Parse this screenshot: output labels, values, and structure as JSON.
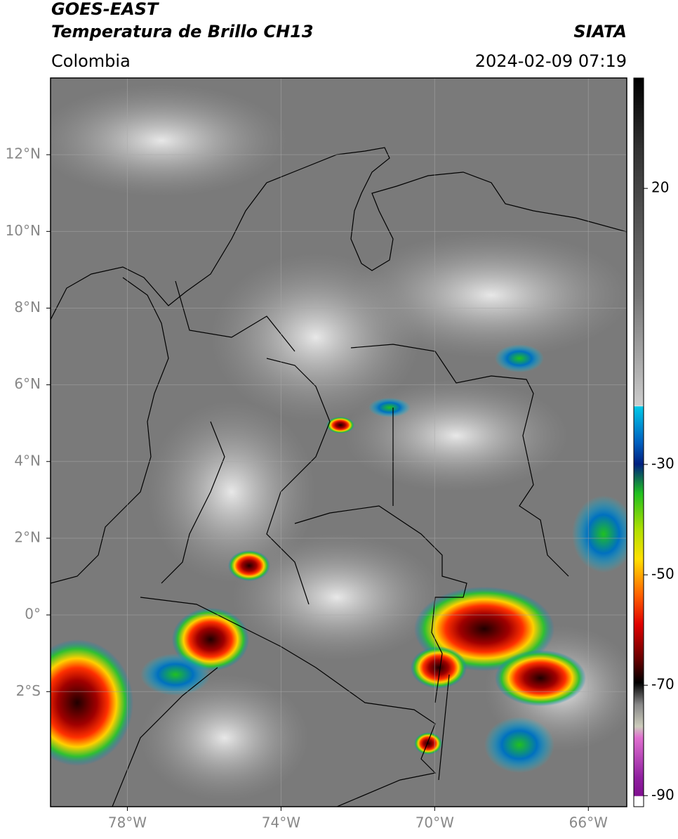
{
  "header": {
    "title": "GOES-EAST",
    "subtitle": "Temperatura de Brillo CH13",
    "source": "SIATA",
    "region": "Colombia",
    "datetime": "2024-02-09 07:19"
  },
  "map": {
    "xlim": [
      -80,
      -65
    ],
    "ylim": [
      -5,
      14
    ],
    "xticks": [
      {
        "value": -78,
        "label": "78°W"
      },
      {
        "value": -74,
        "label": "74°W"
      },
      {
        "value": -70,
        "label": "70°W"
      },
      {
        "value": -66,
        "label": "66°W"
      }
    ],
    "yticks": [
      {
        "value": 12,
        "label": "12°N"
      },
      {
        "value": 10,
        "label": "10°N"
      },
      {
        "value": 8,
        "label": "8°N"
      },
      {
        "value": 6,
        "label": "6°N"
      },
      {
        "value": 4,
        "label": "4°N"
      },
      {
        "value": 2,
        "label": "2°N"
      },
      {
        "value": 0,
        "label": "0°"
      },
      {
        "value": -2,
        "label": "2°S"
      }
    ],
    "grid": true
  },
  "colorbar": {
    "lim": [
      -92,
      40
    ],
    "ticks": [
      20,
      -30,
      -50,
      -70,
      -90
    ]
  }
}
